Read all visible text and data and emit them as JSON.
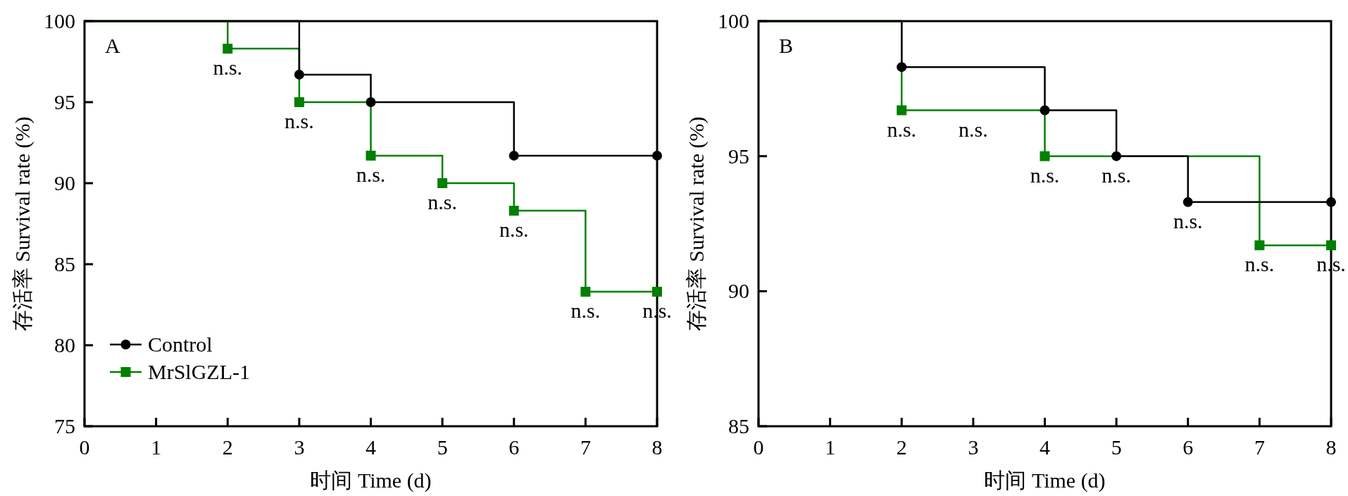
{
  "chart_data": [
    {
      "type": "step",
      "title": "A",
      "xlabel": "时间 Time (d)",
      "ylabel": "存活率 Survival rate (%)",
      "xlim": [
        0,
        8
      ],
      "xticks": [
        0,
        1,
        2,
        3,
        4,
        5,
        6,
        7,
        8
      ],
      "ylim": [
        75,
        100
      ],
      "yticks": [
        75,
        80,
        85,
        90,
        95,
        100
      ],
      "legend": "bottom left",
      "line_style": "solid",
      "series": [
        {
          "name": "Control",
          "color": "#000000",
          "marker": "circle",
          "x": [
            0,
            3,
            4,
            6,
            8
          ],
          "values": [
            100,
            96.7,
            95,
            91.7,
            91.7
          ]
        },
        {
          "name": "MrSlGZL-1",
          "color": "#008000",
          "marker": "square",
          "x": [
            0,
            2,
            3,
            4,
            5,
            6,
            7,
            8
          ],
          "values": [
            100,
            98.3,
            95,
            91.7,
            90,
            88.3,
            83.3,
            83.3
          ]
        }
      ],
      "annotations": [
        {
          "text": "n.s.",
          "x": 2,
          "y": 98.3
        },
        {
          "text": "n.s.",
          "x": 3,
          "y": 95
        },
        {
          "text": "n.s.",
          "x": 4,
          "y": 91.7
        },
        {
          "text": "n.s.",
          "x": 5,
          "y": 90
        },
        {
          "text": "n.s.",
          "x": 6,
          "y": 88.3
        },
        {
          "text": "n.s.",
          "x": 7,
          "y": 83.3
        },
        {
          "text": "n.s.",
          "x": 8,
          "y": 83.3
        }
      ]
    },
    {
      "type": "step",
      "title": "B",
      "xlabel": "时间 Time (d)",
      "ylabel": "存活率 Survival rate (%)",
      "xlim": [
        0,
        8
      ],
      "xticks": [
        0,
        1,
        2,
        3,
        4,
        5,
        6,
        7,
        8
      ],
      "ylim": [
        85,
        100
      ],
      "yticks": [
        85,
        90,
        95,
        100
      ],
      "line_style": "solid",
      "series": [
        {
          "color": "#000000",
          "marker": "circle",
          "x": [
            0,
            2,
            4,
            5,
            6,
            8
          ],
          "values": [
            100,
            98.3,
            96.7,
            95,
            93.3,
            93.3
          ]
        },
        {
          "color": "#008000",
          "marker": "square",
          "x": [
            0,
            2,
            4,
            7,
            8
          ],
          "values": [
            100,
            96.7,
            95,
            91.7,
            91.7
          ]
        }
      ],
      "annotations": [
        {
          "text": "n.s.",
          "x": 2,
          "y": 96.7
        },
        {
          "text": "n.s.",
          "x": 3,
          "y": 96.7
        },
        {
          "text": "n.s.",
          "x": 4,
          "y": 95
        },
        {
          "text": "n.s.",
          "x": 5,
          "y": 95
        },
        {
          "text": "n.s.",
          "x": 6,
          "y": 93.3
        },
        {
          "text": "n.s.",
          "x": 7,
          "y": 91.7
        },
        {
          "text": "n.s.",
          "x": 8,
          "y": 91.7
        }
      ]
    }
  ]
}
